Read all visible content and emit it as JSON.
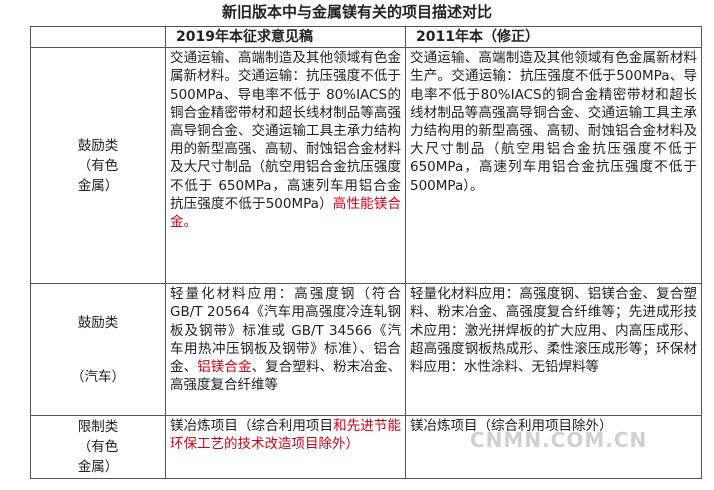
{
  "title": "新旧版本中与金属镁有关的项目描述对比",
  "table": {
    "headers": [
      "2019年本征求意见稿",
      "2011年本（修正）"
    ],
    "rows": [
      {
        "label": [
          "鼓励类",
          "（有色",
          "金属）"
        ],
        "cells": [
          [
            {
              "text": "交通运输、高端制造及其他领域有色金属新材料。交通运输：抗压强度不低于 500MPa、导电率不低于 80%IACS的铜合金精密带材和超长线材制品等高强高导铜合金、交通运输工具主承力结构用的新型高强、高韧、耐蚀铝合金材料及大尺寸制品（航空用铝合金抗压强度不低于 650MPa，高速列车用铝合金抗压强度不低于500MPa）"
            },
            {
              "text": "高性能镁合金。",
              "color": "#d0021b"
            }
          ],
          [
            {
              "text": "交通运输、高端制造及其他领域有色金属新材料生产。交通运输：抗压强度不低于500MPa、导电率不低于80%IACS的铜合金精密带材和超长线材制品等高强高导铜合金、交通运输工具主承力结构用的新型高强、高韧、耐蚀铝合金材料及大尺寸制品（航空用铝合金抗压强度不低于650MPa，高速列车用铝合金抗压强度不低于500MPa）。"
            }
          ]
        ]
      },
      {
        "label": [
          "鼓励类",
          "（汽车）"
        ],
        "cells": [
          [
            {
              "text": "轻量化材料应用：高强度钢（符合 GB/T 20564《汽车用高强度冷连轧钢板及钢带》标准或 GB/T 34566《汽车用热冲压钢板及钢带》标准）、铝合金、"
            },
            {
              "text": "铝镁合金",
              "color": "#d0021b"
            },
            {
              "text": "、复合塑料、粉末冶金、高强度复合纤维等"
            }
          ],
          [
            {
              "text": "轻量化材料应用：高强度钢、铝镁合金、复合塑料、粉末冶金、高强度复合纤维等；先进成形技术应用：激光拼焊板的扩大应用、内高压成形、超高强度钢板热成形、柔性滚压成形等；环保材料应用：水性涂料、无铅焊料等"
            }
          ]
        ]
      },
      {
        "label": [
          "限制类",
          "（有色",
          "金属）"
        ],
        "cells": [
          [
            {
              "text": "镁冶炼项目（综合利用项目"
            },
            {
              "text": "和先进节能环保工艺的技术改造项目除外）",
              "color": "#d0021b"
            }
          ],
          [
            {
              "text": "镁冶炼项目（综合利用项目除外）"
            }
          ]
        ]
      }
    ]
  },
  "watermark": "CNMN.COM.CN"
}
